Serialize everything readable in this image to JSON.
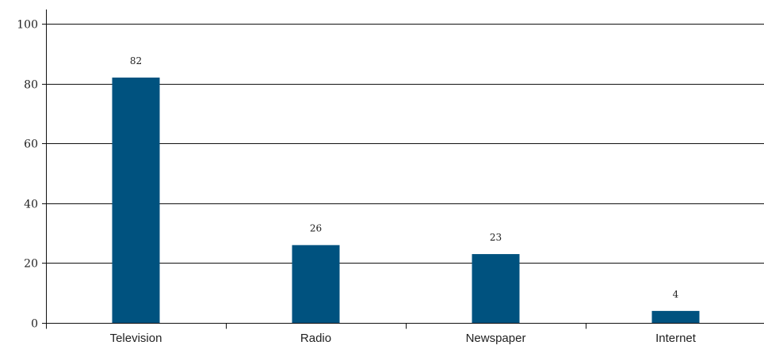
{
  "chart_data": {
    "type": "bar",
    "title": "",
    "xlabel": "",
    "ylabel": "",
    "categories": [
      "Television",
      "Radio",
      "Newspaper",
      "Internet"
    ],
    "values": [
      82,
      26,
      23,
      4
    ],
    "value_labels": [
      "82",
      "26",
      "23",
      "4"
    ],
    "ylim": [
      0,
      100
    ],
    "yticks": [
      0,
      20,
      40,
      60,
      80,
      100
    ],
    "ytick_labels": [
      "0",
      "20",
      "40",
      "60",
      "80",
      "100"
    ],
    "grid": true,
    "legend": "none",
    "colors": {
      "bar": "#00527f",
      "grid": "#111111",
      "axis": "#111111"
    }
  }
}
